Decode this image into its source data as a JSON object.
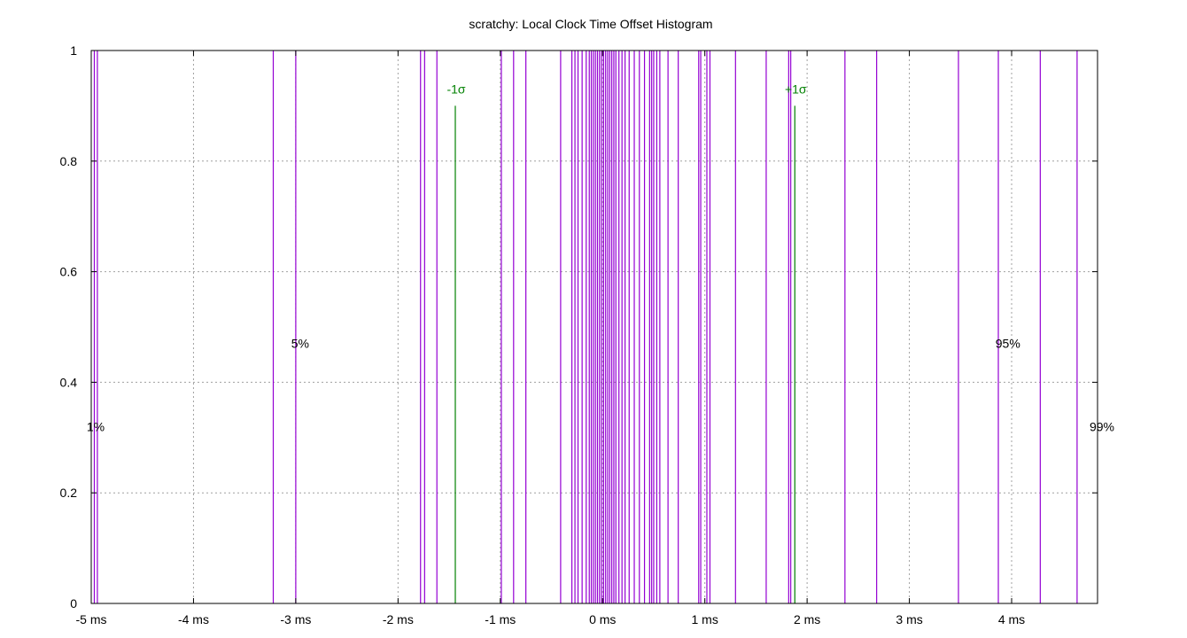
{
  "chart_data": {
    "type": "bar",
    "title": "scratchy: Local Clock Time Offset Histogram",
    "xlabel": "",
    "ylabel": "",
    "xlim": [
      -5,
      4.84
    ],
    "ylim": [
      0,
      1
    ],
    "grid": true,
    "x_ticks": [
      {
        "value": -5,
        "label": "-5 ms"
      },
      {
        "value": -4,
        "label": "-4 ms"
      },
      {
        "value": -3,
        "label": "-3 ms"
      },
      {
        "value": -2,
        "label": "-2 ms"
      },
      {
        "value": -1,
        "label": "-1 ms"
      },
      {
        "value": 0,
        "label": "0 ms"
      },
      {
        "value": 1,
        "label": "1 ms"
      },
      {
        "value": 2,
        "label": "2 ms"
      },
      {
        "value": 3,
        "label": "3 ms"
      },
      {
        "value": 4,
        "label": "4 ms"
      }
    ],
    "y_ticks": [
      {
        "value": 0,
        "label": "0"
      },
      {
        "value": 0.2,
        "label": "0.2"
      },
      {
        "value": 0.4,
        "label": "0.4"
      },
      {
        "value": 0.6,
        "label": "0.6"
      },
      {
        "value": 0.8,
        "label": "0.8"
      },
      {
        "value": 1,
        "label": "1"
      }
    ],
    "series_color": "#9400d3",
    "series": [
      {
        "x": [
          -4.97,
          -4.94,
          -3.22,
          -3.0,
          -1.78,
          -1.74,
          -1.62,
          -0.99,
          -0.87,
          -0.75,
          -0.41,
          -0.3,
          -0.27,
          -0.24,
          -0.2,
          -0.16,
          -0.13,
          -0.11,
          -0.09,
          -0.07,
          -0.05,
          -0.03,
          -0.01,
          0.01,
          0.03,
          0.05,
          0.07,
          0.09,
          0.11,
          0.13,
          0.16,
          0.19,
          0.22,
          0.26,
          0.31,
          0.36,
          0.41,
          0.46,
          0.48,
          0.5,
          0.53,
          0.56,
          0.64,
          0.74,
          0.94,
          0.96,
          1.02,
          1.05,
          1.3,
          1.6,
          1.82,
          1.84,
          2.37,
          2.68,
          3.48,
          3.87,
          4.28,
          4.64
        ],
        "y": [
          1,
          1,
          1,
          1,
          1,
          1,
          1,
          1,
          1,
          1,
          1,
          1,
          1,
          1,
          1,
          1,
          1,
          1,
          1,
          1,
          1,
          1,
          1,
          1,
          1,
          1,
          1,
          1,
          1,
          1,
          1,
          1,
          1,
          1,
          1,
          1,
          1,
          1,
          1,
          1,
          1,
          1,
          1,
          1,
          1,
          1,
          1,
          1,
          1,
          1,
          1,
          1,
          1,
          1,
          1,
          1,
          1,
          1
        ]
      }
    ],
    "sigma_markers": [
      {
        "x": -1.44,
        "y": 0.9,
        "label": "-1σ"
      },
      {
        "x": 1.88,
        "y": 0.9,
        "label": "+1σ"
      }
    ],
    "sigma_color": "#008000",
    "percentile_labels": [
      {
        "x": -5,
        "y": 0.32,
        "label": "1%"
      },
      {
        "x": -3,
        "y": 0.47,
        "label": "5%"
      },
      {
        "x": 3.92,
        "y": 0.47,
        "label": "95%"
      },
      {
        "x": 4.84,
        "y": 0.32,
        "label": "99%"
      }
    ]
  }
}
